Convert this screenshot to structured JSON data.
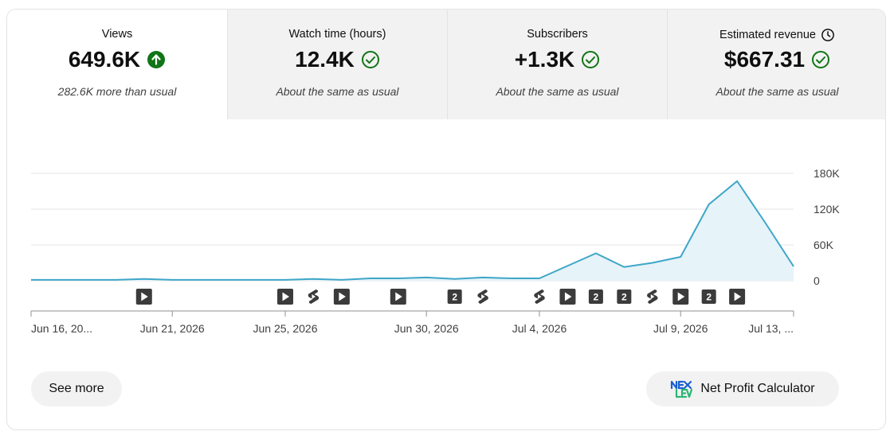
{
  "tabs": [
    {
      "title": "Views",
      "value": "649.6K",
      "sub": "282.6K more than usual",
      "status": "up",
      "active": true
    },
    {
      "title": "Watch time (hours)",
      "value": "12.4K",
      "sub": "About the same as usual",
      "status": "same",
      "active": false
    },
    {
      "title": "Subscribers",
      "value": "+1.3K",
      "sub": "About the same as usual",
      "status": "same",
      "active": false
    },
    {
      "title": "Estimated revenue",
      "value": "$667.31",
      "sub": "About the same as usual",
      "status": "same",
      "active": false,
      "title_icon": "clock-icon"
    }
  ],
  "colors": {
    "up": "#107516",
    "same": "#107516",
    "line": "#3ea6c8",
    "fill": "#e6f3f9",
    "grid": "#e5e5e5"
  },
  "chart_data": {
    "type": "area",
    "y_ticks": [
      "0",
      "60K",
      "120K",
      "180K"
    ],
    "ylim": [
      0,
      180000
    ],
    "x_tick_labels": [
      "Jun 16, 20...",
      "Jun 21, 2026",
      "Jun 25, 2026",
      "Jun 30, 2026",
      "Jul 4, 2026",
      "Jul 9, 2026",
      "Jul 13, ..."
    ],
    "x_tick_index": [
      0,
      5,
      9,
      14,
      18,
      23,
      27
    ],
    "values": [
      1500,
      1500,
      1500,
      1500,
      3000,
      1500,
      1500,
      1500,
      1500,
      1500,
      3000,
      1500,
      4000,
      4000,
      5500,
      3000,
      5500,
      4000,
      4000,
      25000,
      46000,
      23000,
      30000,
      40000,
      128000,
      167000,
      97000,
      24000
    ],
    "markers": [
      {
        "i": 4,
        "type": "video"
      },
      {
        "i": 9,
        "type": "video"
      },
      {
        "i": 10,
        "type": "short"
      },
      {
        "i": 11,
        "type": "video"
      },
      {
        "i": 13,
        "type": "video"
      },
      {
        "i": 15,
        "type": "count",
        "label": "2"
      },
      {
        "i": 16,
        "type": "short"
      },
      {
        "i": 18,
        "type": "short"
      },
      {
        "i": 19,
        "type": "video"
      },
      {
        "i": 20,
        "type": "count",
        "label": "2"
      },
      {
        "i": 21,
        "type": "count",
        "label": "2"
      },
      {
        "i": 22,
        "type": "short"
      },
      {
        "i": 23,
        "type": "video"
      },
      {
        "i": 24,
        "type": "count",
        "label": "2"
      },
      {
        "i": 25,
        "type": "video"
      }
    ]
  },
  "buttons": {
    "see_more": "See more",
    "npc": "Net Profit Calculator"
  }
}
